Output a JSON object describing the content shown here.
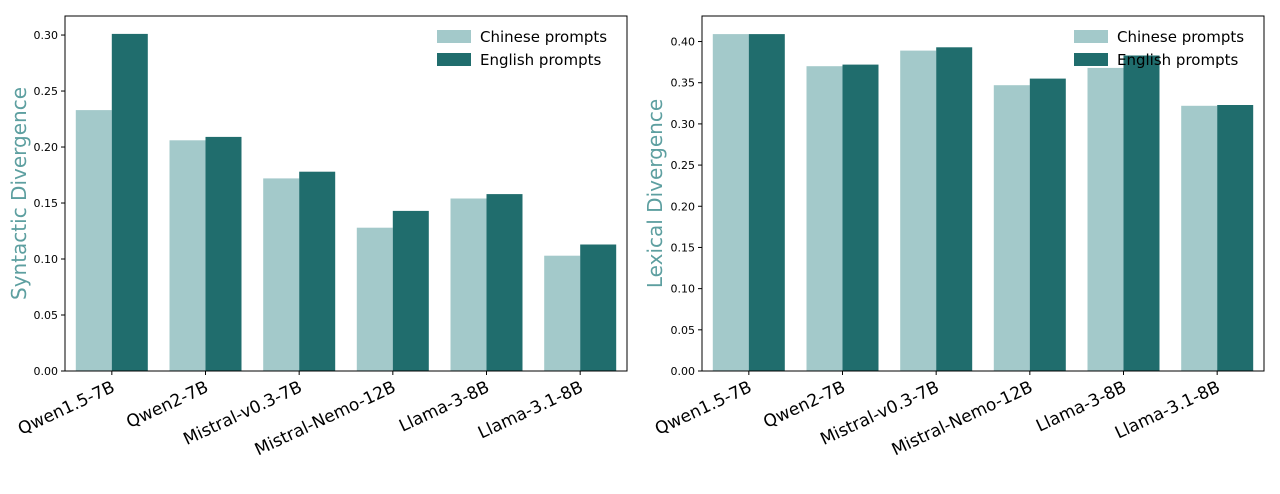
{
  "colors": {
    "chinese": "#a3c9ca",
    "english": "#206d6d",
    "axis_title": "#5d9fa0"
  },
  "chart_data": [
    {
      "type": "bar",
      "categories": [
        "Qwen1.5-7B",
        "Qwen2-7B",
        "Mistral-v0.3-7B",
        "Mistral-Nemo-12B",
        "Llama-3-8B",
        "Llama-3.1-8B"
      ],
      "series": [
        {
          "name": "Chinese prompts",
          "values": [
            0.233,
            0.206,
            0.172,
            0.128,
            0.154,
            0.103
          ]
        },
        {
          "name": "English prompts",
          "values": [
            0.301,
            0.209,
            0.178,
            0.143,
            0.158,
            0.113
          ]
        }
      ],
      "ylabel": "Syntactic Divergence",
      "ylim": [
        0,
        0.317
      ],
      "yticks": [
        "0.00",
        "0.05",
        "0.10",
        "0.15",
        "0.20",
        "0.25",
        "0.30"
      ],
      "legend_position": "top-right",
      "grid": false
    },
    {
      "type": "bar",
      "categories": [
        "Qwen1.5-7B",
        "Qwen2-7B",
        "Mistral-v0.3-7B",
        "Mistral-Nemo-12B",
        "Llama-3-8B",
        "Llama-3.1-8B"
      ],
      "series": [
        {
          "name": "Chinese prompts",
          "values": [
            0.409,
            0.37,
            0.389,
            0.347,
            0.368,
            0.322
          ]
        },
        {
          "name": "English prompts",
          "values": [
            0.409,
            0.372,
            0.393,
            0.355,
            0.383,
            0.323
          ]
        }
      ],
      "ylabel": "Lexical Divergence",
      "ylim": [
        0,
        0.431
      ],
      "yticks": [
        "0.00",
        "0.05",
        "0.10",
        "0.15",
        "0.20",
        "0.25",
        "0.30",
        "0.35",
        "0.40"
      ],
      "legend_position": "top-right",
      "grid": false
    }
  ]
}
